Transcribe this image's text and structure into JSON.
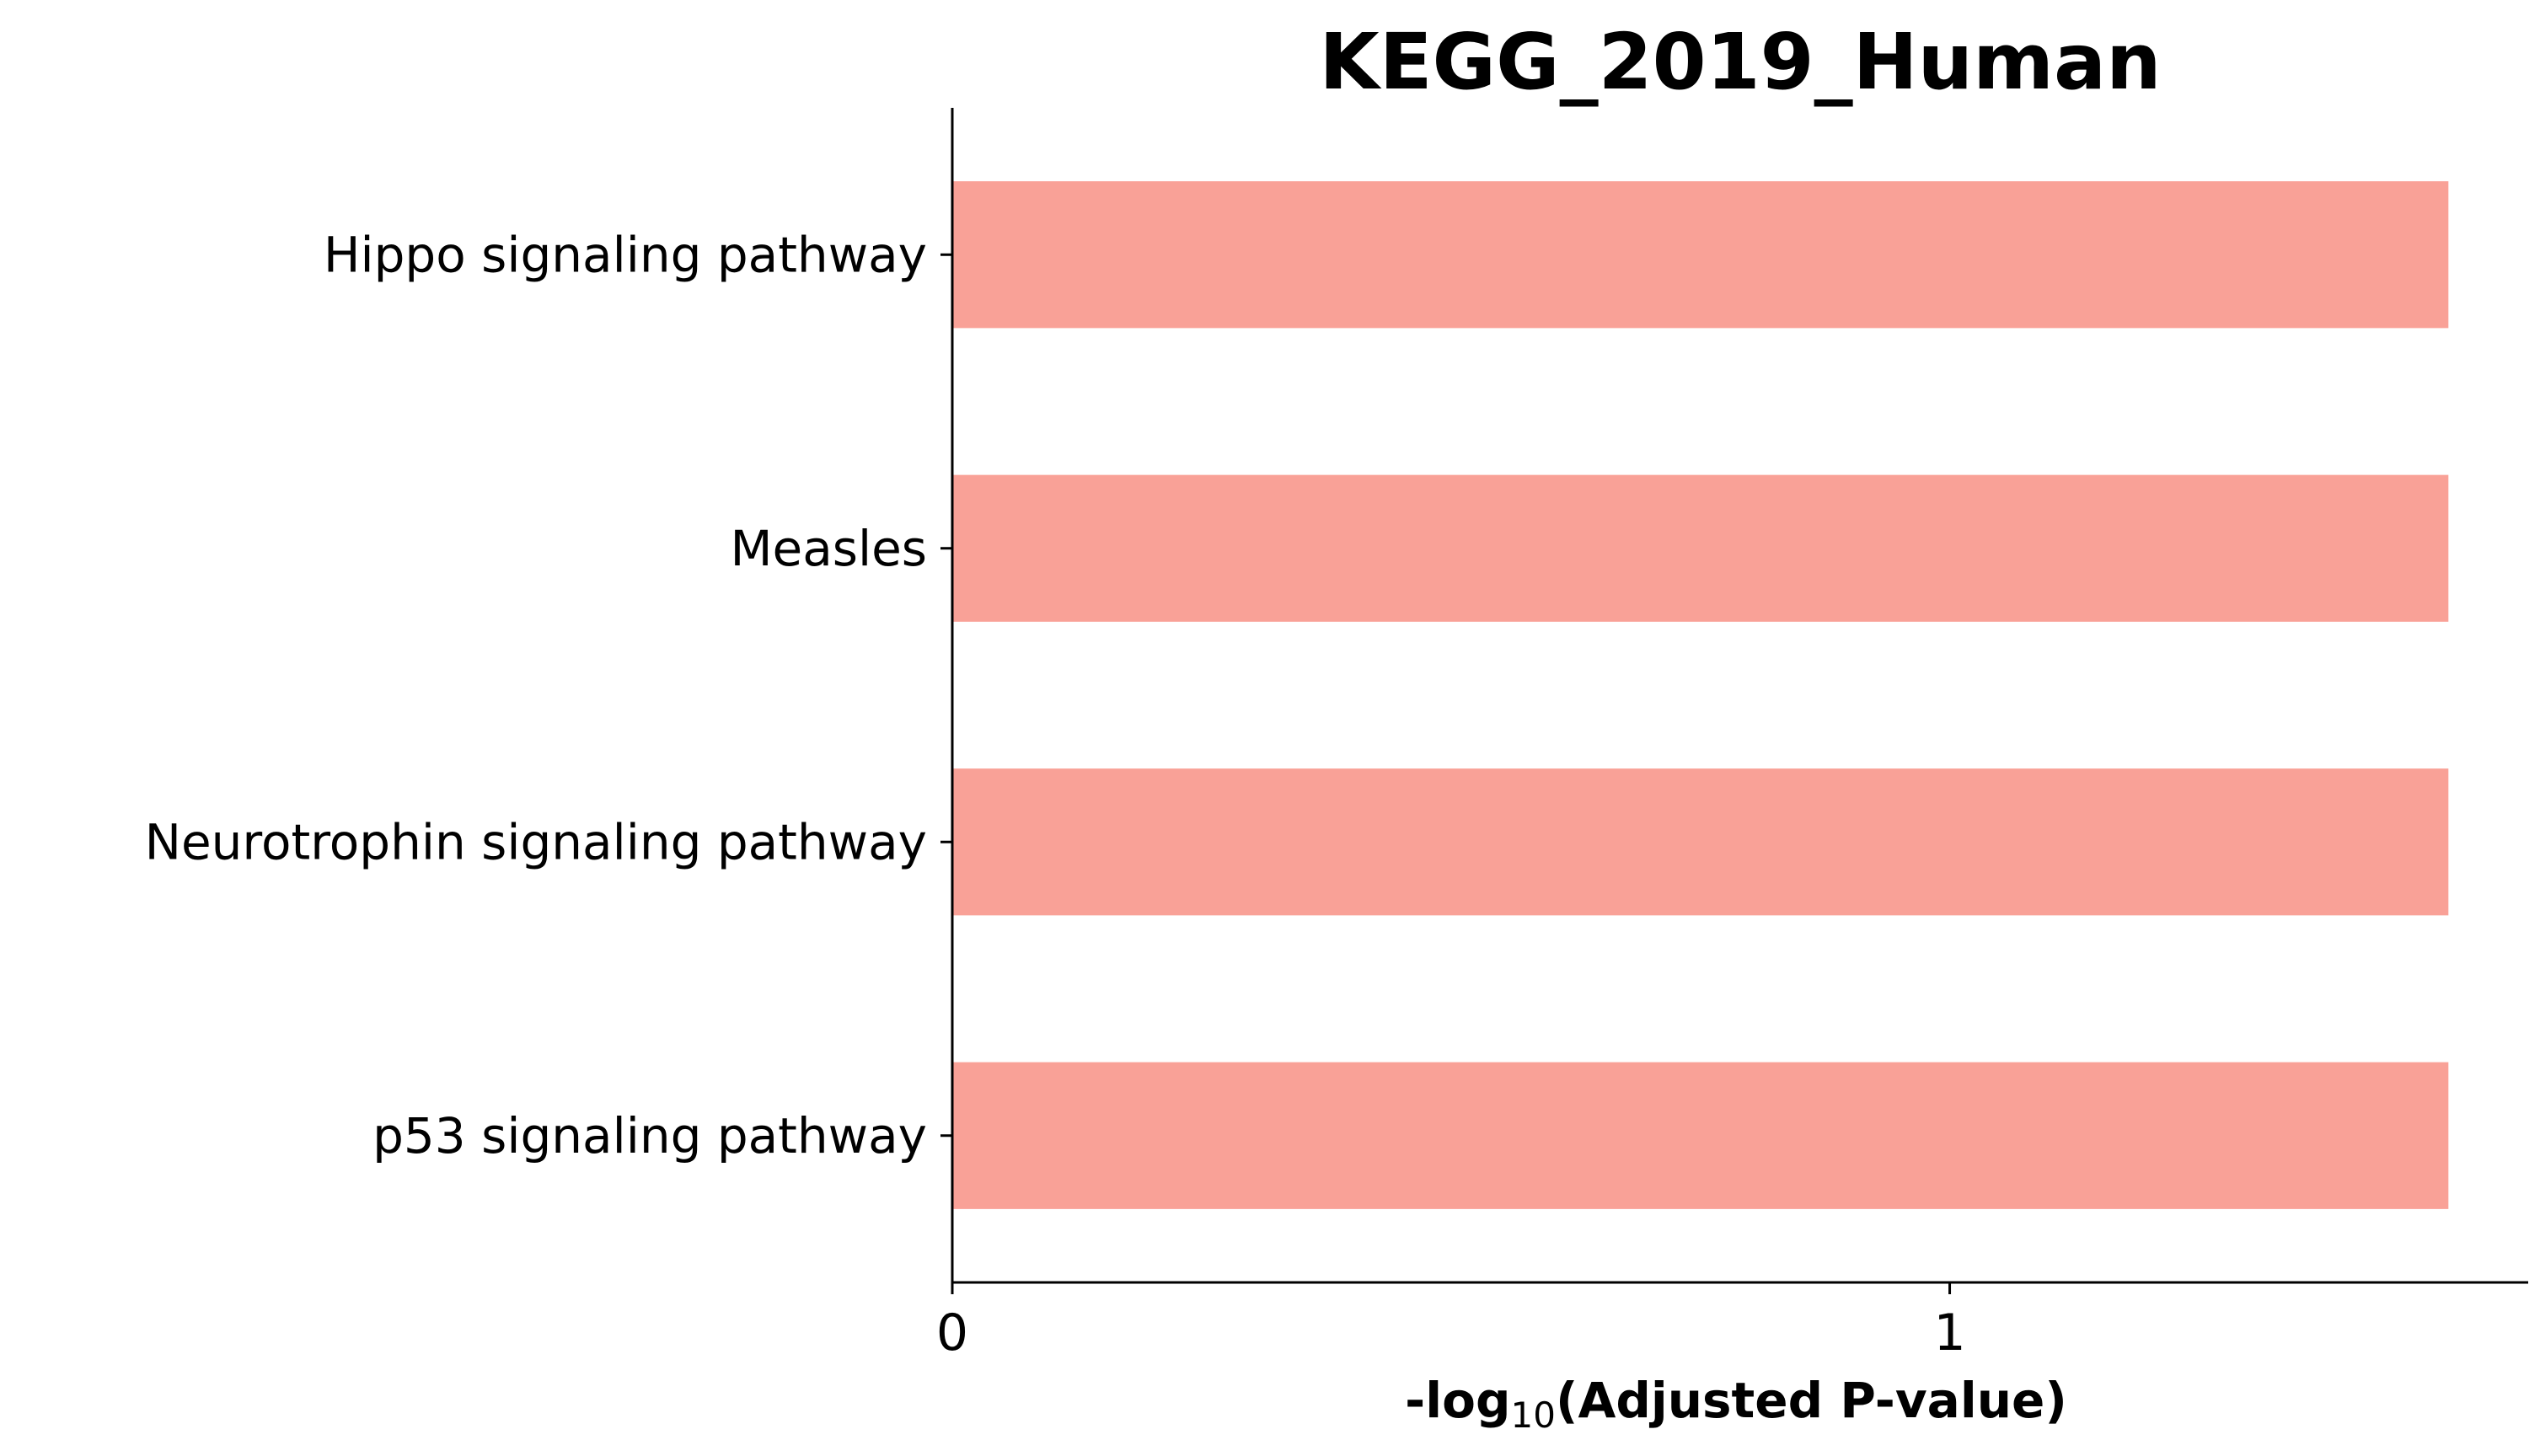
{
  "chart_data": {
    "type": "bar",
    "orientation": "horizontal",
    "title": "KEGG_2019_Human",
    "xlabel": {
      "prefix": "-log",
      "subscript": "10",
      "suffix": "(Adjusted P-value)"
    },
    "ylabel": "",
    "categories": [
      "Hippo signaling pathway",
      "Measles",
      "Neurotrophin signaling pathway",
      "p53 signaling pathway"
    ],
    "values": [
      1.5,
      1.5,
      1.5,
      1.5
    ],
    "xlim": [
      0,
      1.58
    ],
    "xticks": [
      0,
      1
    ],
    "xtick_labels": [
      "0",
      "1"
    ],
    "bar_color": "#f9a197",
    "grid": false,
    "legend": "none"
  }
}
